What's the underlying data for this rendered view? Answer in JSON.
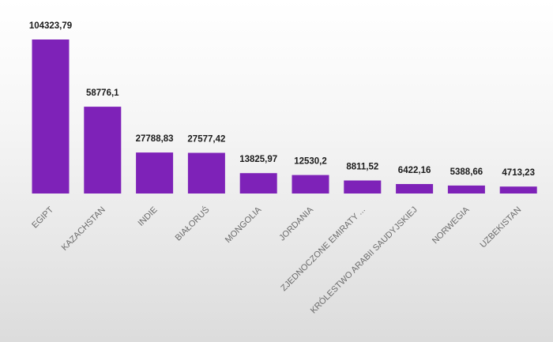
{
  "chart_data": {
    "type": "bar",
    "categories": [
      "EGIPT",
      "KAZACHSTAN",
      "INDIE",
      "BIAŁORUŚ",
      "MONGOLIA",
      "JORDANIA",
      "ZJEDNOCZONE EMIRATY ...",
      "KRÓLESTWO ARABII SAUDYJSKIEJ",
      "NORWEGIA",
      "UZBEKISTAN"
    ],
    "values": [
      104323.79,
      58776.1,
      27788.83,
      27577.42,
      13825.97,
      12530.2,
      8811.52,
      6422.16,
      5388.66,
      4713.23
    ],
    "value_labels": [
      "104323,79",
      "58776,1",
      "27788,83",
      "27577,42",
      "13825,97",
      "12530,2",
      "8811,52",
      "6422,16",
      "5388,66",
      "4713,23"
    ],
    "title": "",
    "xlabel": "",
    "ylabel": "",
    "ylim": [
      0,
      104323.79
    ],
    "grid": false,
    "bar_color": "#7e22b8"
  }
}
